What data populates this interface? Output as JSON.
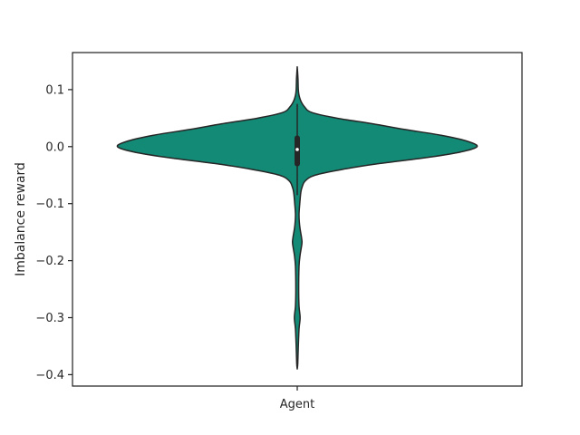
{
  "chart_data": {
    "type": "violin",
    "categories": [
      "Agent"
    ],
    "xlabel": "",
    "ylabel": "Imbalance reward",
    "ylim": [
      -0.42,
      0.165
    ],
    "yticks": [
      0.1,
      0.0,
      -0.1,
      -0.2,
      -0.3,
      -0.4
    ],
    "ytick_labels": [
      "0.1",
      "0.0",
      "−0.1",
      "−0.2",
      "−0.3",
      "−0.4"
    ],
    "grid": false,
    "series": [
      {
        "category": "Agent",
        "color": "#138a75",
        "density_profile": [
          {
            "y": 0.14,
            "w": 0.0
          },
          {
            "y": 0.12,
            "w": 0.004
          },
          {
            "y": 0.1,
            "w": 0.006
          },
          {
            "y": 0.09,
            "w": 0.01
          },
          {
            "y": 0.08,
            "w": 0.02
          },
          {
            "y": 0.07,
            "w": 0.04
          },
          {
            "y": 0.06,
            "w": 0.08
          },
          {
            "y": 0.05,
            "w": 0.22
          },
          {
            "y": 0.04,
            "w": 0.42
          },
          {
            "y": 0.03,
            "w": 0.6
          },
          {
            "y": 0.02,
            "w": 0.8
          },
          {
            "y": 0.01,
            "w": 0.94
          },
          {
            "y": 0.0,
            "w": 1.0
          },
          {
            "y": -0.01,
            "w": 0.9
          },
          {
            "y": -0.02,
            "w": 0.7
          },
          {
            "y": -0.03,
            "w": 0.45
          },
          {
            "y": -0.04,
            "w": 0.25
          },
          {
            "y": -0.05,
            "w": 0.1
          },
          {
            "y": -0.06,
            "w": 0.045
          },
          {
            "y": -0.07,
            "w": 0.028
          },
          {
            "y": -0.08,
            "w": 0.02
          },
          {
            "y": -0.1,
            "w": 0.014
          },
          {
            "y": -0.12,
            "w": 0.01
          },
          {
            "y": -0.14,
            "w": 0.014
          },
          {
            "y": -0.16,
            "w": 0.024
          },
          {
            "y": -0.17,
            "w": 0.026
          },
          {
            "y": -0.19,
            "w": 0.016
          },
          {
            "y": -0.21,
            "w": 0.01
          },
          {
            "y": -0.25,
            "w": 0.008
          },
          {
            "y": -0.28,
            "w": 0.01
          },
          {
            "y": -0.3,
            "w": 0.016
          },
          {
            "y": -0.32,
            "w": 0.01
          },
          {
            "y": -0.35,
            "w": 0.006
          },
          {
            "y": -0.38,
            "w": 0.003
          },
          {
            "y": -0.39,
            "w": 0.0
          }
        ],
        "box": {
          "whisker_low": -0.085,
          "q1": -0.03,
          "median": -0.005,
          "q3": 0.015,
          "whisker_high": 0.075
        }
      }
    ]
  }
}
